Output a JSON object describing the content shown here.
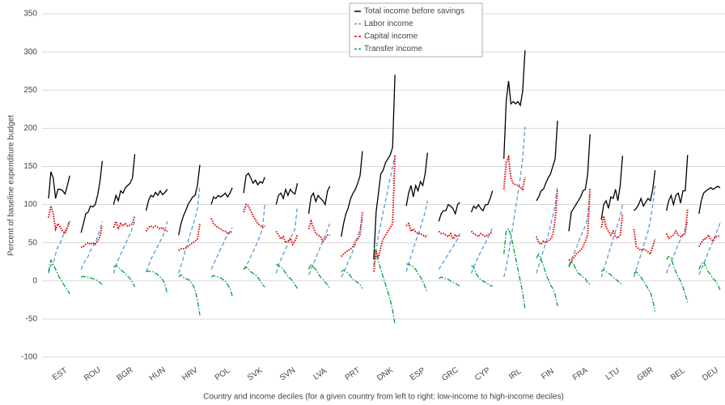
{
  "chart_data": {
    "type": "line",
    "y_label": "Percent of baseline expenditure budget",
    "x_label": "Country and income deciles (for a given country from left to right: low-income to high-income deciles)",
    "categories": [
      "EST",
      "ROU",
      "BGR",
      "HUN",
      "HRV",
      "POL",
      "SVK",
      "SVN",
      "LVA",
      "PRT",
      "DNK",
      "ESP",
      "GRC",
      "CYP",
      "IRL",
      "FIN",
      "FRA",
      "LTU",
      "GBR",
      "BEL",
      "DEU"
    ],
    "ylim": [
      -100,
      350
    ],
    "yticks": [
      -100,
      -50,
      0,
      50,
      100,
      150,
      200,
      250,
      300,
      350
    ],
    "grid": true,
    "legend": "top-center",
    "series": [
      {
        "name": "Total income before savings",
        "color": "#000000",
        "style": "solid",
        "values": [
          [
            108,
            143,
            135,
            108,
            120,
            120,
            118,
            114,
            125,
            138
          ],
          [
            63,
            75,
            88,
            90,
            98,
            97,
            100,
            112,
            130,
            157
          ],
          [
            100,
            112,
            105,
            118,
            115,
            122,
            125,
            128,
            135,
            166
          ],
          [
            92,
            105,
            112,
            110,
            116,
            112,
            118,
            113,
            116,
            120
          ],
          [
            60,
            75,
            85,
            92,
            100,
            105,
            110,
            112,
            125,
            152
          ],
          [
            100,
            110,
            108,
            112,
            110,
            112,
            115,
            110,
            115,
            122
          ],
          [
            115,
            138,
            141,
            135,
            128,
            132,
            126,
            130,
            128,
            136
          ],
          [
            100,
            112,
            115,
            108,
            120,
            112,
            120,
            116,
            114,
            128
          ],
          [
            88,
            110,
            115,
            104,
            112,
            108,
            105,
            100,
            118,
            124
          ],
          [
            58,
            75,
            88,
            96,
            108,
            115,
            120,
            128,
            138,
            170
          ],
          [
            28,
            90,
            115,
            140,
            145,
            155,
            160,
            165,
            175,
            270
          ],
          [
            98,
            115,
            125,
            110,
            125,
            118,
            130,
            125,
            140,
            168
          ],
          [
            78,
            88,
            92,
            92,
            100,
            98,
            95,
            88,
            100,
            103
          ],
          [
            90,
            98,
            95,
            100,
            95,
            92,
            100,
            100,
            108,
            118
          ],
          [
            160,
            235,
            262,
            232,
            235,
            232,
            235,
            230,
            248,
            302
          ],
          [
            105,
            110,
            118,
            120,
            128,
            135,
            140,
            150,
            160,
            210
          ],
          [
            65,
            90,
            95,
            100,
            105,
            110,
            118,
            120,
            140,
            192
          ],
          [
            80,
            100,
            105,
            95,
            110,
            108,
            120,
            105,
            125,
            164
          ],
          [
            92,
            95,
            100,
            108,
            98,
            103,
            108,
            105,
            120,
            145
          ],
          [
            92,
            105,
            112,
            100,
            112,
            115,
            102,
            118,
            118,
            165
          ],
          [
            88,
            105,
            115,
            118,
            120,
            122,
            120,
            122,
            124,
            122
          ]
        ]
      },
      {
        "name": "Labor income",
        "color": "#5b9bd5",
        "style": "dashed",
        "values": [
          [
            10,
            20,
            22,
            35,
            45,
            50,
            58,
            65,
            72,
            80
          ],
          [
            15,
            22,
            28,
            32,
            40,
            45,
            50,
            58,
            68,
            78
          ],
          [
            10,
            20,
            28,
            35,
            42,
            48,
            55,
            62,
            70,
            78
          ],
          [
            12,
            20,
            28,
            34,
            40,
            46,
            52,
            58,
            66,
            78
          ],
          [
            10,
            20,
            30,
            42,
            52,
            62,
            72,
            82,
            95,
            125
          ],
          [
            15,
            22,
            28,
            35,
            42,
            48,
            55,
            60,
            65,
            70
          ],
          [
            15,
            20,
            25,
            32,
            38,
            45,
            52,
            60,
            68,
            100
          ],
          [
            10,
            20,
            28,
            35,
            42,
            48,
            55,
            62,
            68,
            98
          ],
          [
            8,
            15,
            22,
            30,
            38,
            45,
            52,
            60,
            68,
            75
          ],
          [
            5,
            10,
            18,
            25,
            32,
            40,
            48,
            58,
            68,
            82
          ],
          [
            20,
            40,
            60,
            75,
            90,
            105,
            120,
            135,
            150,
            165
          ],
          [
            12,
            22,
            32,
            42,
            52,
            60,
            70,
            80,
            90,
            105
          ],
          [
            15,
            20,
            25,
            30,
            35,
            40,
            45,
            50,
            55,
            62
          ],
          [
            10,
            18,
            25,
            32,
            38,
            44,
            50,
            56,
            62,
            70
          ],
          [
            5,
            18,
            35,
            55,
            75,
            95,
            115,
            135,
            160,
            202
          ],
          [
            10,
            20,
            30,
            40,
            50,
            60,
            72,
            85,
            100,
            125
          ],
          [
            20,
            28,
            35,
            42,
            50,
            58,
            65,
            72,
            85,
            115
          ],
          [
            5,
            15,
            25,
            35,
            45,
            55,
            65,
            75,
            85,
            100
          ],
          [
            5,
            15,
            25,
            35,
            45,
            55,
            65,
            80,
            100,
            125
          ],
          [
            10,
            18,
            25,
            32,
            40,
            48,
            55,
            60,
            68,
            78
          ],
          [
            8,
            15,
            22,
            30,
            38,
            45,
            52,
            60,
            68,
            76
          ]
        ]
      },
      {
        "name": "Capital income",
        "color": "#e00000",
        "style": "dotted",
        "values": [
          [
            83,
            98,
            88,
            68,
            75,
            70,
            65,
            62,
            70,
            78
          ],
          [
            44,
            45,
            48,
            50,
            48,
            50,
            48,
            52,
            58,
            72
          ],
          [
            70,
            78,
            68,
            75,
            72,
            75,
            72,
            73,
            75,
            85
          ],
          [
            65,
            70,
            72,
            70,
            72,
            70,
            68,
            70,
            66,
            65
          ],
          [
            40,
            42,
            42,
            43,
            45,
            48,
            50,
            52,
            55,
            75
          ],
          [
            82,
            75,
            72,
            70,
            68,
            66,
            65,
            62,
            63,
            65
          ],
          [
            90,
            100,
            98,
            92,
            85,
            80,
            75,
            73,
            70,
            72
          ],
          [
            65,
            60,
            55,
            58,
            50,
            52,
            56,
            48,
            52,
            60
          ],
          [
            68,
            78,
            70,
            62,
            60,
            58,
            52,
            55,
            60,
            60
          ],
          [
            32,
            35,
            38,
            40,
            42,
            45,
            52,
            55,
            60,
            90
          ],
          [
            12,
            40,
            30,
            45,
            55,
            60,
            65,
            70,
            75,
            165
          ],
          [
            72,
            75,
            65,
            68,
            64,
            62,
            62,
            60,
            58,
            60
          ],
          [
            65,
            62,
            62,
            60,
            58,
            62,
            55,
            60,
            58,
            60
          ],
          [
            65,
            62,
            60,
            58,
            62,
            60,
            58,
            60,
            62,
            64
          ],
          [
            120,
            155,
            162,
            135,
            128,
            126,
            125,
            123,
            120,
            136
          ],
          [
            58,
            50,
            48,
            52,
            50,
            52,
            55,
            60,
            80,
            120
          ],
          [
            28,
            25,
            30,
            35,
            38,
            40,
            45,
            52,
            60,
            122
          ],
          [
            70,
            85,
            70,
            65,
            60,
            65,
            58,
            56,
            60,
            88
          ],
          [
            68,
            45,
            42,
            40,
            42,
            40,
            38,
            35,
            45,
            55
          ],
          [
            62,
            56,
            58,
            60,
            65,
            60,
            58,
            60,
            62,
            95
          ],
          [
            45,
            50,
            55,
            55,
            60,
            55,
            52,
            58,
            58,
            60
          ]
        ]
      },
      {
        "name": "Transfer income",
        "color": "#00a03c",
        "style": "dashdot",
        "values": [
          [
            12,
            27,
            22,
            15,
            8,
            2,
            -2,
            -8,
            -12,
            -17
          ],
          [
            5,
            6,
            5,
            5,
            4,
            3,
            2,
            0,
            -2,
            -5
          ],
          [
            18,
            20,
            18,
            15,
            12,
            10,
            6,
            3,
            -2,
            -8
          ],
          [
            12,
            13,
            12,
            12,
            10,
            8,
            5,
            2,
            -5,
            -17
          ],
          [
            5,
            8,
            5,
            3,
            2,
            0,
            -5,
            -12,
            -25,
            -45
          ],
          [
            5,
            7,
            6,
            5,
            4,
            2,
            0,
            -5,
            -10,
            -20
          ],
          [
            15,
            18,
            16,
            12,
            10,
            8,
            5,
            0,
            -5,
            -8
          ],
          [
            22,
            20,
            18,
            15,
            10,
            6,
            3,
            0,
            -5,
            -10
          ],
          [
            15,
            22,
            18,
            15,
            10,
            5,
            2,
            -2,
            -5,
            -10
          ],
          [
            12,
            14,
            12,
            10,
            6,
            2,
            0,
            -2,
            -5,
            -10
          ],
          [
            45,
            35,
            25,
            15,
            5,
            -5,
            -15,
            -25,
            -38,
            -57
          ],
          [
            22,
            22,
            20,
            18,
            15,
            10,
            5,
            0,
            -8,
            -15
          ],
          [
            3,
            5,
            4,
            3,
            2,
            0,
            -2,
            -3,
            -5,
            -7
          ],
          [
            20,
            18,
            10,
            5,
            2,
            0,
            -2,
            -4,
            -6,
            -7
          ],
          [
            35,
            65,
            68,
            60,
            45,
            30,
            15,
            0,
            -15,
            -37
          ],
          [
            30,
            35,
            28,
            20,
            10,
            2,
            -5,
            -10,
            -18,
            -33
          ],
          [
            18,
            25,
            22,
            15,
            10,
            8,
            5,
            3,
            -2,
            -5
          ],
          [
            12,
            15,
            12,
            10,
            8,
            5,
            2,
            0,
            -3,
            -5
          ],
          [
            10,
            12,
            8,
            5,
            0,
            -5,
            -10,
            -15,
            -25,
            -40
          ],
          [
            28,
            32,
            30,
            20,
            12,
            5,
            0,
            -8,
            -18,
            -28
          ],
          [
            15,
            22,
            25,
            18,
            12,
            8,
            3,
            0,
            -5,
            -12
          ]
        ]
      }
    ]
  }
}
